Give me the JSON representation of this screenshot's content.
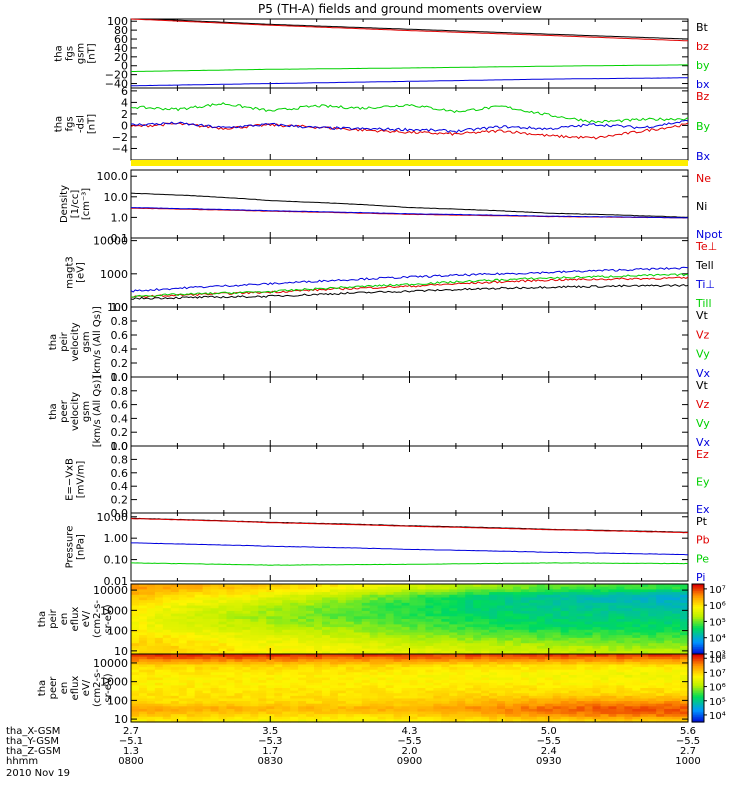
{
  "title": "P5 (TH-A) fields and ground moments overview",
  "colors": {
    "black": "#000000",
    "red": "#e00000",
    "green": "#00d000",
    "blue": "#0000dd",
    "yellow": "#ffee00"
  },
  "chart_data": [
    {
      "type": "line",
      "name": "panel-fgs-gsm",
      "ylabel": [
        "tha",
        "fgs",
        "gsm",
        "[nT]"
      ],
      "ylim": [
        -50,
        105
      ],
      "yticks": [
        {
          "v": 100,
          "l": "100"
        },
        {
          "v": 80,
          "l": "80"
        },
        {
          "v": 60,
          "l": "60"
        },
        {
          "v": 40,
          "l": "40"
        },
        {
          "v": 20,
          "l": "20"
        },
        {
          "v": 0,
          "l": "0"
        },
        {
          "v": -20,
          "l": "−20"
        },
        {
          "v": -40,
          "l": "−40"
        }
      ],
      "x": [
        800,
        830,
        900,
        930,
        1000
      ],
      "series": [
        {
          "name": "Bt",
          "color": "black",
          "values": [
            107,
            93,
            82,
            71,
            60
          ]
        },
        {
          "name": "bz",
          "color": "red",
          "values": [
            105,
            91,
            79,
            68,
            56
          ]
        },
        {
          "name": "by",
          "color": "green",
          "values": [
            -13,
            -8,
            -5,
            -1,
            2
          ]
        },
        {
          "name": "bx",
          "color": "blue",
          "values": [
            -45,
            -40,
            -35,
            -30,
            -27
          ]
        }
      ]
    },
    {
      "type": "line",
      "name": "panel-fgs-dsl",
      "ylabel": [
        "tha",
        "fgs",
        "-dsl",
        "[nT]"
      ],
      "ylim": [
        -6,
        6.5
      ],
      "yticks": [
        {
          "v": 6,
          "l": "6"
        },
        {
          "v": 4,
          "l": "4"
        },
        {
          "v": 2,
          "l": "2"
        },
        {
          "v": 0,
          "l": "0"
        },
        {
          "v": -2,
          "l": "−2"
        },
        {
          "v": -4,
          "l": "−4"
        }
      ],
      "x": [
        800,
        810,
        820,
        830,
        840,
        850,
        900,
        910,
        920,
        930,
        940,
        950,
        1000
      ],
      "series": [
        {
          "name": "Bz",
          "color": "red",
          "values": [
            -0.2,
            0.3,
            -0.5,
            0.1,
            -0.3,
            -0.8,
            -1.2,
            -1.5,
            -0.9,
            -1.8,
            -2.2,
            -1.0,
            0.2
          ]
        },
        {
          "name": "By",
          "color": "green",
          "values": [
            3.2,
            2.8,
            3.8,
            2.5,
            3.4,
            3.0,
            3.6,
            2.4,
            3.3,
            1.8,
            0.6,
            1.0,
            1.2
          ]
        },
        {
          "name": "Bx",
          "color": "blue",
          "values": [
            0.1,
            0.4,
            -0.4,
            0.2,
            -0.4,
            -0.6,
            -0.7,
            -1.0,
            -0.2,
            -0.6,
            0.2,
            -0.4,
            0.8
          ]
        }
      ]
    },
    {
      "type": "line",
      "name": "panel-density",
      "ylog": true,
      "ylabel": [
        "Density",
        "[1/cc]",
        "[cm⁻³]"
      ],
      "ylim": [
        0.1,
        200
      ],
      "yticks": [
        {
          "v": 100,
          "l": "100.0"
        },
        {
          "v": 10,
          "l": "10.0"
        },
        {
          "v": 1,
          "l": "1.0"
        },
        {
          "v": 0.1,
          "l": "0.1"
        }
      ],
      "x": [
        800,
        830,
        900,
        930,
        1000
      ],
      "series": [
        {
          "name": "Ne",
          "color": "red",
          "values": [
            2.8,
            2.0,
            1.4,
            1.1,
            0.95
          ]
        },
        {
          "name": "Ni",
          "color": "black",
          "values": [
            15,
            6.5,
            3.0,
            1.6,
            1.0
          ]
        },
        {
          "name": "Npot",
          "color": "blue",
          "values": [
            3.0,
            2.1,
            1.5,
            1.15,
            0.95
          ]
        }
      ]
    },
    {
      "type": "line",
      "name": "panel-temperature",
      "ylog": true,
      "ylabel": [
        "magt3",
        "[eV]"
      ],
      "ylim": [
        100,
        12000
      ],
      "yticks": [
        {
          "v": 10000,
          "l": "10000"
        },
        {
          "v": 1000,
          "l": "1000"
        },
        {
          "v": 100,
          "l": "100"
        }
      ],
      "x": [
        800,
        830,
        900,
        930,
        1000
      ],
      "series": [
        {
          "name": "Te⊥",
          "color": "red",
          "values": [
            200,
            280,
            420,
            650,
            750
          ]
        },
        {
          "name": "Tell",
          "color": "black",
          "values": [
            180,
            210,
            300,
            400,
            450
          ]
        },
        {
          "name": "Ti⊥",
          "color": "blue",
          "values": [
            300,
            500,
            800,
            1100,
            1500
          ]
        },
        {
          "name": "Till",
          "color": "green",
          "values": [
            210,
            290,
            480,
            750,
            950
          ]
        }
      ]
    },
    {
      "type": "line",
      "name": "panel-peir-velocity",
      "ylabel": [
        "tha",
        "peir",
        "velocity",
        "gsm",
        "[km/s (All Qs)]"
      ],
      "ylim": [
        0,
        1
      ],
      "yticks": [
        {
          "v": 1,
          "l": "1.0"
        },
        {
          "v": 0.8,
          "l": "0.8"
        },
        {
          "v": 0.6,
          "l": "0.6"
        },
        {
          "v": 0.4,
          "l": "0.4"
        },
        {
          "v": 0.2,
          "l": "0.2"
        },
        {
          "v": 0,
          "l": "0.0"
        }
      ],
      "x": [],
      "series": [],
      "legend": [
        {
          "name": "Vt",
          "color": "black"
        },
        {
          "name": "Vz",
          "color": "red"
        },
        {
          "name": "Vy",
          "color": "green"
        },
        {
          "name": "Vx",
          "color": "blue"
        }
      ]
    },
    {
      "type": "line",
      "name": "panel-peer-velocity",
      "ylabel": [
        "tha",
        "peer",
        "velocity",
        "gsm",
        "[km/s (All Qs)]"
      ],
      "ylim": [
        0,
        1
      ],
      "yticks": [
        {
          "v": 1,
          "l": "1.0"
        },
        {
          "v": 0.8,
          "l": "0.8"
        },
        {
          "v": 0.6,
          "l": "0.6"
        },
        {
          "v": 0.4,
          "l": "0.4"
        },
        {
          "v": 0.2,
          "l": "0.2"
        },
        {
          "v": 0,
          "l": "0.0"
        }
      ],
      "x": [],
      "series": [],
      "legend": [
        {
          "name": "Vt",
          "color": "black"
        },
        {
          "name": "Vz",
          "color": "red"
        },
        {
          "name": "Vy",
          "color": "green"
        },
        {
          "name": "Vx",
          "color": "blue"
        }
      ]
    },
    {
      "type": "line",
      "name": "panel-efield",
      "ylabel": [
        "E=−VxB",
        "[mV/m]"
      ],
      "ylim": [
        0,
        1
      ],
      "yticks": [
        {
          "v": 1,
          "l": "1.0"
        },
        {
          "v": 0.8,
          "l": "0.8"
        },
        {
          "v": 0.6,
          "l": "0.6"
        },
        {
          "v": 0.4,
          "l": "0.4"
        },
        {
          "v": 0.2,
          "l": "0.2"
        },
        {
          "v": 0,
          "l": "0.0"
        }
      ],
      "x": [],
      "series": [],
      "legend": [
        {
          "name": "Ez",
          "color": "red"
        },
        {
          "name": "Ey",
          "color": "green"
        },
        {
          "name": "Ex",
          "color": "blue"
        }
      ]
    },
    {
      "type": "line",
      "name": "panel-pressure",
      "ylog": true,
      "ylabel": [
        "Pressure",
        "[nPa]"
      ],
      "ylim": [
        0.01,
        15
      ],
      "yticks": [
        {
          "v": 10,
          "l": "10.00"
        },
        {
          "v": 1,
          "l": "1.00"
        },
        {
          "v": 0.1,
          "l": "0.10"
        },
        {
          "v": 0.01,
          "l": "0.01"
        }
      ],
      "x": [
        800,
        830,
        900,
        930,
        1000
      ],
      "series": [
        {
          "name": "Pt",
          "color": "black",
          "values": [
            8.5,
            5.5,
            3.8,
            2.6,
            1.9
          ]
        },
        {
          "name": "Pb",
          "color": "red",
          "values": [
            8.2,
            5.3,
            3.6,
            2.5,
            1.8
          ]
        },
        {
          "name": "Pe",
          "color": "green",
          "values": [
            0.07,
            0.055,
            0.06,
            0.07,
            0.065
          ]
        },
        {
          "name": "Pi",
          "color": "blue",
          "values": [
            0.6,
            0.42,
            0.3,
            0.22,
            0.17
          ]
        }
      ]
    },
    {
      "type": "heatmap",
      "name": "panel-peir-spectrogram",
      "ylog": true,
      "ylabel": [
        "tha",
        "peir",
        "en",
        "eflux",
        "eV/",
        "(cm2-s-",
        "sr-eV)"
      ],
      "ylim": [
        7,
        20000
      ],
      "yticks": [
        {
          "v": 10000,
          "l": "10000"
        },
        {
          "v": 1000,
          "l": "1000"
        },
        {
          "v": 100,
          "l": "100"
        },
        {
          "v": 10,
          "l": "10"
        }
      ],
      "colorbar": [
        {
          "v": 7,
          "l": "10⁷"
        },
        {
          "v": 6,
          "l": "10⁶"
        },
        {
          "v": 5,
          "l": "10⁵"
        },
        {
          "v": 4,
          "l": "10⁴"
        },
        {
          "v": 3,
          "l": "10³"
        }
      ],
      "zlim": [
        3,
        7.3
      ],
      "x": [
        800,
        815,
        830,
        845,
        900,
        915,
        930,
        945,
        1000
      ],
      "rows_energy": [
        10,
        30,
        100,
        300,
        1000,
        3000,
        10000,
        20000
      ],
      "z": [
        [
          6.6,
          6.4,
          6.2,
          6.0,
          5.6,
          5.3,
          5.0,
          4.9,
          4.8
        ],
        [
          6.3,
          6.0,
          5.7,
          5.3,
          4.9,
          4.5,
          4.3,
          4.1,
          4.0
        ],
        [
          6.0,
          5.6,
          5.3,
          5.0,
          4.7,
          4.5,
          4.4,
          4.3,
          4.2
        ],
        [
          5.9,
          5.5,
          5.2,
          5.0,
          4.8,
          4.6,
          4.5,
          4.5,
          4.4
        ],
        [
          5.9,
          5.6,
          5.4,
          5.2,
          5.0,
          4.8,
          4.6,
          4.6,
          4.6
        ],
        [
          6.1,
          5.9,
          5.7,
          5.5,
          5.3,
          5.1,
          5.0,
          4.9,
          4.9
        ],
        [
          6.2,
          6.1,
          5.9,
          5.8,
          5.6,
          5.5,
          5.4,
          5.3,
          5.3
        ],
        [
          6.1,
          6.0,
          5.9,
          5.8,
          5.7,
          5.6,
          5.5,
          5.4,
          5.4
        ]
      ]
    },
    {
      "type": "heatmap",
      "name": "panel-peer-spectrogram",
      "ylog": true,
      "ylabel": [
        "tha",
        "peer",
        "en",
        "eflux",
        "eV/",
        "(cm2-s-",
        "sr-eV)"
      ],
      "ylim": [
        7,
        30000
      ],
      "yticks": [
        {
          "v": 10000,
          "l": "10000"
        },
        {
          "v": 1000,
          "l": "1000"
        },
        {
          "v": 100,
          "l": "100"
        },
        {
          "v": 10,
          "l": "10"
        }
      ],
      "colorbar": [
        {
          "v": 8,
          "l": "10⁸"
        },
        {
          "v": 7,
          "l": "10⁷"
        },
        {
          "v": 6,
          "l": "10⁶"
        },
        {
          "v": 5,
          "l": "10⁵"
        },
        {
          "v": 4,
          "l": "10⁴"
        }
      ],
      "zlim": [
        3.5,
        8.3
      ],
      "x": [
        800,
        815,
        830,
        845,
        900,
        915,
        930,
        945,
        1000
      ],
      "rows_energy": [
        8,
        12,
        30,
        100,
        300,
        1000,
        3000,
        6000,
        12000,
        25000
      ],
      "z": [
        [
          8.1,
          8.1,
          8.1,
          8.0,
          8.0,
          8.0,
          8.0,
          8.0,
          8.0
        ],
        [
          7.8,
          7.8,
          7.8,
          7.7,
          7.7,
          7.7,
          7.7,
          7.7,
          7.7
        ],
        [
          7.0,
          7.0,
          7.0,
          7.0,
          7.0,
          6.9,
          6.9,
          6.9,
          6.9
        ],
        [
          6.8,
          6.8,
          6.8,
          6.8,
          6.7,
          6.7,
          6.7,
          6.6,
          6.6
        ],
        [
          6.8,
          6.8,
          6.8,
          6.8,
          6.8,
          6.8,
          6.8,
          6.8,
          6.8
        ],
        [
          6.9,
          6.9,
          6.9,
          6.9,
          6.9,
          7.0,
          7.0,
          7.0,
          7.0
        ],
        [
          7.0,
          7.0,
          7.0,
          7.0,
          7.1,
          7.3,
          7.5,
          7.6,
          7.6
        ],
        [
          7.5,
          7.4,
          7.3,
          7.3,
          7.4,
          7.6,
          7.8,
          7.9,
          7.9
        ],
        [
          7.2,
          7.1,
          7.0,
          7.0,
          7.1,
          7.3,
          7.6,
          7.7,
          7.8
        ],
        [
          6.8,
          6.8,
          6.7,
          6.7,
          6.8,
          6.9,
          7.0,
          7.1,
          7.2
        ]
      ]
    }
  ],
  "xaxis": {
    "rows": [
      {
        "label": "tha_X-GSM",
        "values": [
          "2.7",
          "3.5",
          "4.3",
          "5.0",
          "5.6"
        ]
      },
      {
        "label": "tha_Y-GSM",
        "values": [
          "−5.1",
          "−5.3",
          "−5.5",
          "−5.5",
          "−5.5"
        ]
      },
      {
        "label": "tha_Z-GSM",
        "values": [
          "1.3",
          "1.7",
          "2.0",
          "2.4",
          "2.7"
        ]
      },
      {
        "label": "hhmm",
        "values": [
          "0800",
          "0830",
          "0900",
          "0930",
          "1000"
        ]
      }
    ],
    "date": "2010 Nov 19"
  }
}
